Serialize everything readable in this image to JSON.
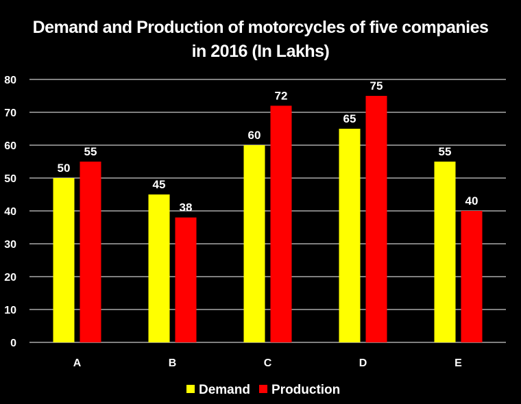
{
  "chart_data": {
    "type": "bar",
    "title_lines": [
      "Demand and Production of motorcycles of five companies",
      "in 2016 (In Lakhs)"
    ],
    "categories": [
      "A",
      "B",
      "C",
      "D",
      "E"
    ],
    "series": [
      {
        "name": "Demand",
        "values": [
          50,
          45,
          60,
          65,
          55
        ],
        "color": "#ffff00"
      },
      {
        "name": "Production",
        "values": [
          55,
          38,
          72,
          75,
          40
        ],
        "color": "#ff0000"
      }
    ],
    "ylim": [
      0,
      80
    ],
    "yticks": [
      0,
      10,
      20,
      30,
      40,
      50,
      60,
      70,
      80
    ],
    "grid": true,
    "legend_position": "bottom",
    "background": "#000000",
    "gridline_color": "#ffffff"
  }
}
